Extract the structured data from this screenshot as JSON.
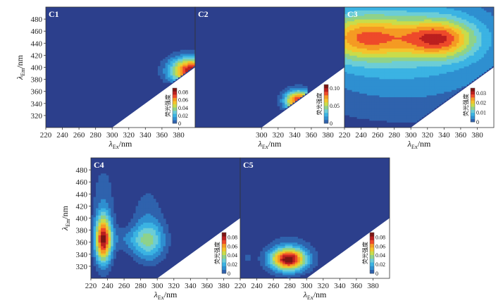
{
  "chart_data": [
    {
      "type": "heatmap",
      "panel": "C1",
      "x_label": {
        "symbol": "λ",
        "sub": "Ex",
        "unit": "/nm"
      },
      "y_label": {
        "symbol": "λ",
        "sub": "Em",
        "unit": "/nm"
      },
      "xlim": [
        220,
        400
      ],
      "ylim": [
        300,
        500
      ],
      "x_ticks": [
        220,
        240,
        260,
        280,
        300,
        320,
        340,
        360,
        380
      ],
      "y_ticks": [
        320,
        340,
        360,
        380,
        400,
        420,
        440,
        460,
        480
      ],
      "colorbar": {
        "title": "荧光强度",
        "ticks": [
          "0",
          "0.02",
          "0.04",
          "0.06",
          "0.08"
        ],
        "range": [
          0,
          0.09
        ]
      },
      "peaks": [
        {
          "x": 395,
          "y": 395,
          "sx": 18,
          "sy": 16,
          "value": 0.088
        }
      ],
      "region": {
        "x": [
          352,
          400
        ],
        "y": [
          376,
          500
        ]
      }
    },
    {
      "type": "heatmap",
      "panel": "C2",
      "x_label": {
        "symbol": "λ",
        "sub": "Ex",
        "unit": "/nm"
      },
      "xlim": [
        220,
        400
      ],
      "ylim": [
        300,
        500
      ],
      "x_ticks": [
        300,
        320,
        340,
        360,
        380
      ],
      "colorbar": {
        "title": "荧光强度",
        "ticks": [
          "0",
          "0.05",
          "0.10"
        ],
        "range": [
          0,
          0.11
        ]
      },
      "peaks": [
        {
          "x": 345,
          "y": 345,
          "sx": 12,
          "sy": 12,
          "value": 0.105
        }
      ],
      "region": {
        "x": [
          280,
          356
        ],
        "y": [
          330,
          390
        ]
      }
    },
    {
      "type": "heatmap",
      "panel": "C3",
      "x_label": {
        "symbol": "λ",
        "sub": "Ex",
        "unit": "/nm"
      },
      "xlim": [
        220,
        400
      ],
      "ylim": [
        300,
        500
      ],
      "x_ticks": [
        220,
        240,
        260,
        280,
        300,
        320,
        340,
        360,
        380
      ],
      "colorbar": {
        "title": "荧光强度",
        "ticks": [
          "0",
          "0.01",
          "0.02",
          "0.03"
        ],
        "range": [
          0,
          0.035
        ]
      },
      "peaks": [
        {
          "x": 335,
          "y": 448,
          "sx": 30,
          "sy": 22,
          "value": 0.021
        },
        {
          "x": 245,
          "y": 450,
          "sx": 40,
          "sy": 26,
          "value": 0.019
        },
        {
          "x": 290,
          "y": 440,
          "sx": 105,
          "sy": 80,
          "value": 0.012
        }
      ]
    },
    {
      "type": "heatmap",
      "panel": "C4",
      "x_label": {
        "symbol": "λ",
        "sub": "Ex",
        "unit": "/nm"
      },
      "y_label": {
        "symbol": "λ",
        "sub": "Em",
        "unit": "/nm"
      },
      "xlim": [
        220,
        400
      ],
      "ylim": [
        300,
        500
      ],
      "x_ticks": [
        220,
        240,
        260,
        280,
        300,
        320,
        340,
        360,
        380
      ],
      "y_ticks": [
        320,
        340,
        360,
        380,
        400,
        420,
        440,
        460,
        480
      ],
      "colorbar": {
        "title": "荧光强度",
        "ticks": [
          "0",
          "0.02",
          "0.04",
          "0.06",
          "0.08"
        ],
        "range": [
          0,
          0.09
        ]
      },
      "peaks": [
        {
          "x": 235,
          "y": 365,
          "sx": 7,
          "sy": 28,
          "value": 0.088
        },
        {
          "x": 235,
          "y": 440,
          "sx": 10,
          "sy": 40,
          "value": 0.012
        },
        {
          "x": 290,
          "y": 363,
          "sx": 14,
          "sy": 24,
          "value": 0.04
        },
        {
          "x": 288,
          "y": 420,
          "sx": 14,
          "sy": 30,
          "value": 0.01
        },
        {
          "x": 262,
          "y": 365,
          "sx": 18,
          "sy": 14,
          "value": 0.012
        }
      ]
    },
    {
      "type": "heatmap",
      "panel": "C5",
      "x_label": {
        "symbol": "λ",
        "sub": "Ex",
        "unit": "/nm"
      },
      "xlim": [
        220,
        400
      ],
      "ylim": [
        300,
        500
      ],
      "x_ticks": [
        220,
        240,
        260,
        280,
        300,
        320,
        340,
        360,
        380
      ],
      "colorbar": {
        "title": "荧光强度",
        "ticks": [
          "0",
          "0.02",
          "0.04",
          "0.06",
          "0.08"
        ],
        "range": [
          0,
          0.09
        ]
      },
      "peaks": [
        {
          "x": 278,
          "y": 332,
          "sx": 15,
          "sy": 13,
          "value": 0.09
        },
        {
          "x": 280,
          "y": 350,
          "sx": 26,
          "sy": 32,
          "value": 0.008
        },
        {
          "x": 228,
          "y": 334,
          "sx": 6,
          "sy": 9,
          "value": 0.008
        }
      ]
    }
  ],
  "colors": {
    "background": "#2c3f8c",
    "scale": [
      "#2c3f8c",
      "#2f62ad",
      "#2e8fd0",
      "#3bb3e3",
      "#6ccdd6",
      "#8fd28a",
      "#c9dc4a",
      "#f4c42c",
      "#f59a23",
      "#ee4a2a",
      "#bb1f1f",
      "#7d1614"
    ]
  }
}
